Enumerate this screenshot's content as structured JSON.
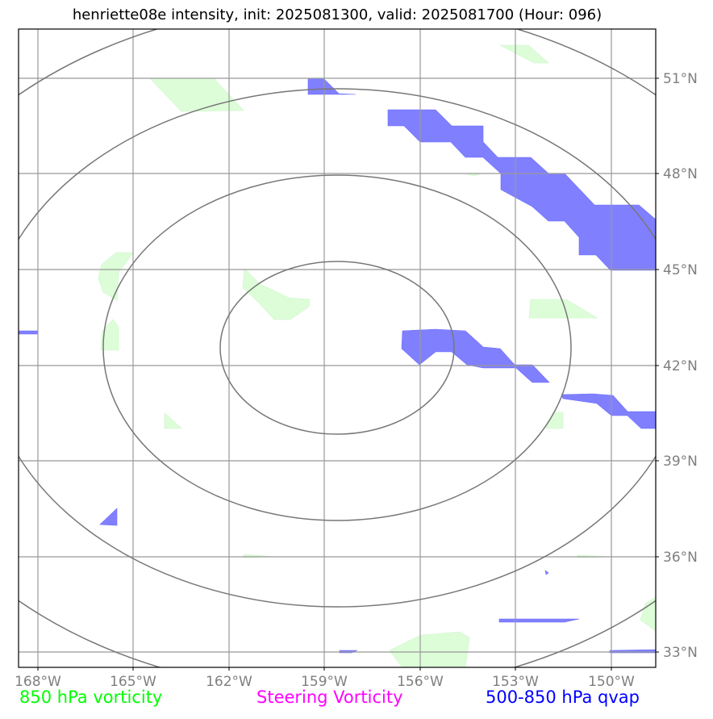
{
  "title": "henriette08e intensity, init: 2025081300, valid: 2025081700 (Hour: 096)",
  "axes": {
    "lon_ticks": [
      "168°W",
      "165°W",
      "162°W",
      "159°W",
      "156°W",
      "153°W",
      "150°W"
    ],
    "lat_ticks": [
      "51°N",
      "48°N",
      "45°N",
      "42°N",
      "39°N",
      "36°N",
      "33°N"
    ],
    "lon_range": [
      -168.6,
      -148.6
    ],
    "lat_range": [
      32.5,
      52.5
    ]
  },
  "legend": {
    "vorticity_850": {
      "label": "850 hPa vorticity",
      "color": "#00ff00"
    },
    "steering_vorticity": {
      "label": "Steering Vorticity",
      "color": "#ff00ff"
    },
    "qvap_500_850": {
      "label": "500-850 hPa qvap",
      "color": "#0000ff"
    }
  },
  "fill_colors": {
    "vorticity_fill": "#ddfdd9",
    "qvap_fill": "#8080ff",
    "range_rings": "#777777",
    "gridlines": "#999999"
  }
}
